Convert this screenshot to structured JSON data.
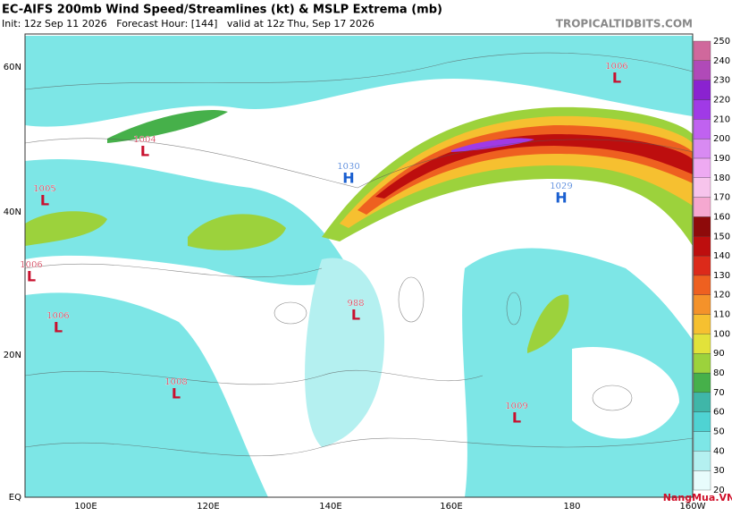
{
  "header": {
    "title": "EC-AIFS 200mb Wind Speed/Streamlines (kt) & MSLP Extrema (mb)",
    "subtitle": "Init: 12z Sep 11 2026   Forecast Hour: [144]   valid at 12z Thu, Sep 17 2026",
    "site": "TROPICALTIDBITS.COM"
  },
  "map": {
    "lat_labels": [
      "60N",
      "40N",
      "20N",
      "EQ"
    ],
    "lon_labels": [
      "100E",
      "120E",
      "140E",
      "160E",
      "180",
      "160W"
    ],
    "systems": [
      {
        "value": "1006",
        "symbol": "L"
      },
      {
        "value": "1004",
        "symbol": "L"
      },
      {
        "value": "1030",
        "symbol": "H"
      },
      {
        "value": "1029",
        "symbol": "H"
      },
      {
        "value": "1005",
        "symbol": "L"
      },
      {
        "value": "1006",
        "symbol": "L"
      },
      {
        "value": "988",
        "symbol": "L"
      },
      {
        "value": "1006",
        "symbol": "L"
      },
      {
        "value": "1008",
        "symbol": "L"
      },
      {
        "value": "1009",
        "symbol": "L"
      }
    ],
    "low_color": "#c8102e",
    "high_color": "#1a5fd0"
  },
  "colorbar": {
    "ticks": [
      20,
      30,
      40,
      50,
      60,
      70,
      80,
      90,
      100,
      110,
      120,
      130,
      140,
      150,
      160,
      170,
      180,
      190,
      200,
      210,
      220,
      230,
      240,
      250
    ],
    "colors": [
      "#e8fcfc",
      "#b4f0f0",
      "#7de6e6",
      "#4fd3d3",
      "#3fb6a8",
      "#46b04a",
      "#9cd23c",
      "#e2e23a",
      "#f6c030",
      "#f4922a",
      "#ee6020",
      "#dc2a1a",
      "#bd0e0e",
      "#8e0a0a",
      "#f5a8d0",
      "#f7c4ec",
      "#eeaaf2",
      "#d88af2",
      "#c062f0",
      "#a03ae6",
      "#8a22d0",
      "#b04ab8",
      "#d0689c"
    ]
  },
  "watermark": "NangMua.VN"
}
